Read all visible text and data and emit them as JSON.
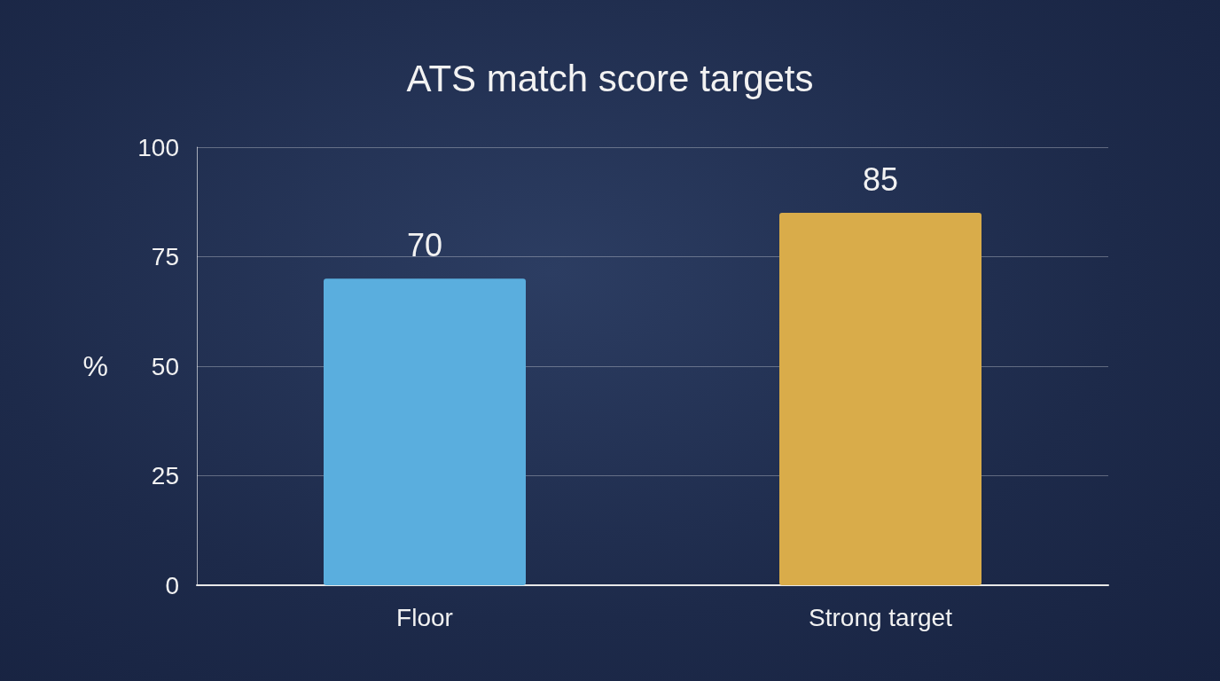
{
  "chart_data": {
    "type": "bar",
    "title": "ATS match score targets",
    "ylabel": "%",
    "categories": [
      "Floor",
      "Strong target"
    ],
    "values": [
      70,
      85
    ],
    "colors": [
      "#5aaede",
      "#d9ac4a"
    ],
    "ylim": [
      0,
      100
    ],
    "yticks": [
      0,
      25,
      50,
      75,
      100
    ],
    "grid": "y",
    "data_labels": true
  }
}
